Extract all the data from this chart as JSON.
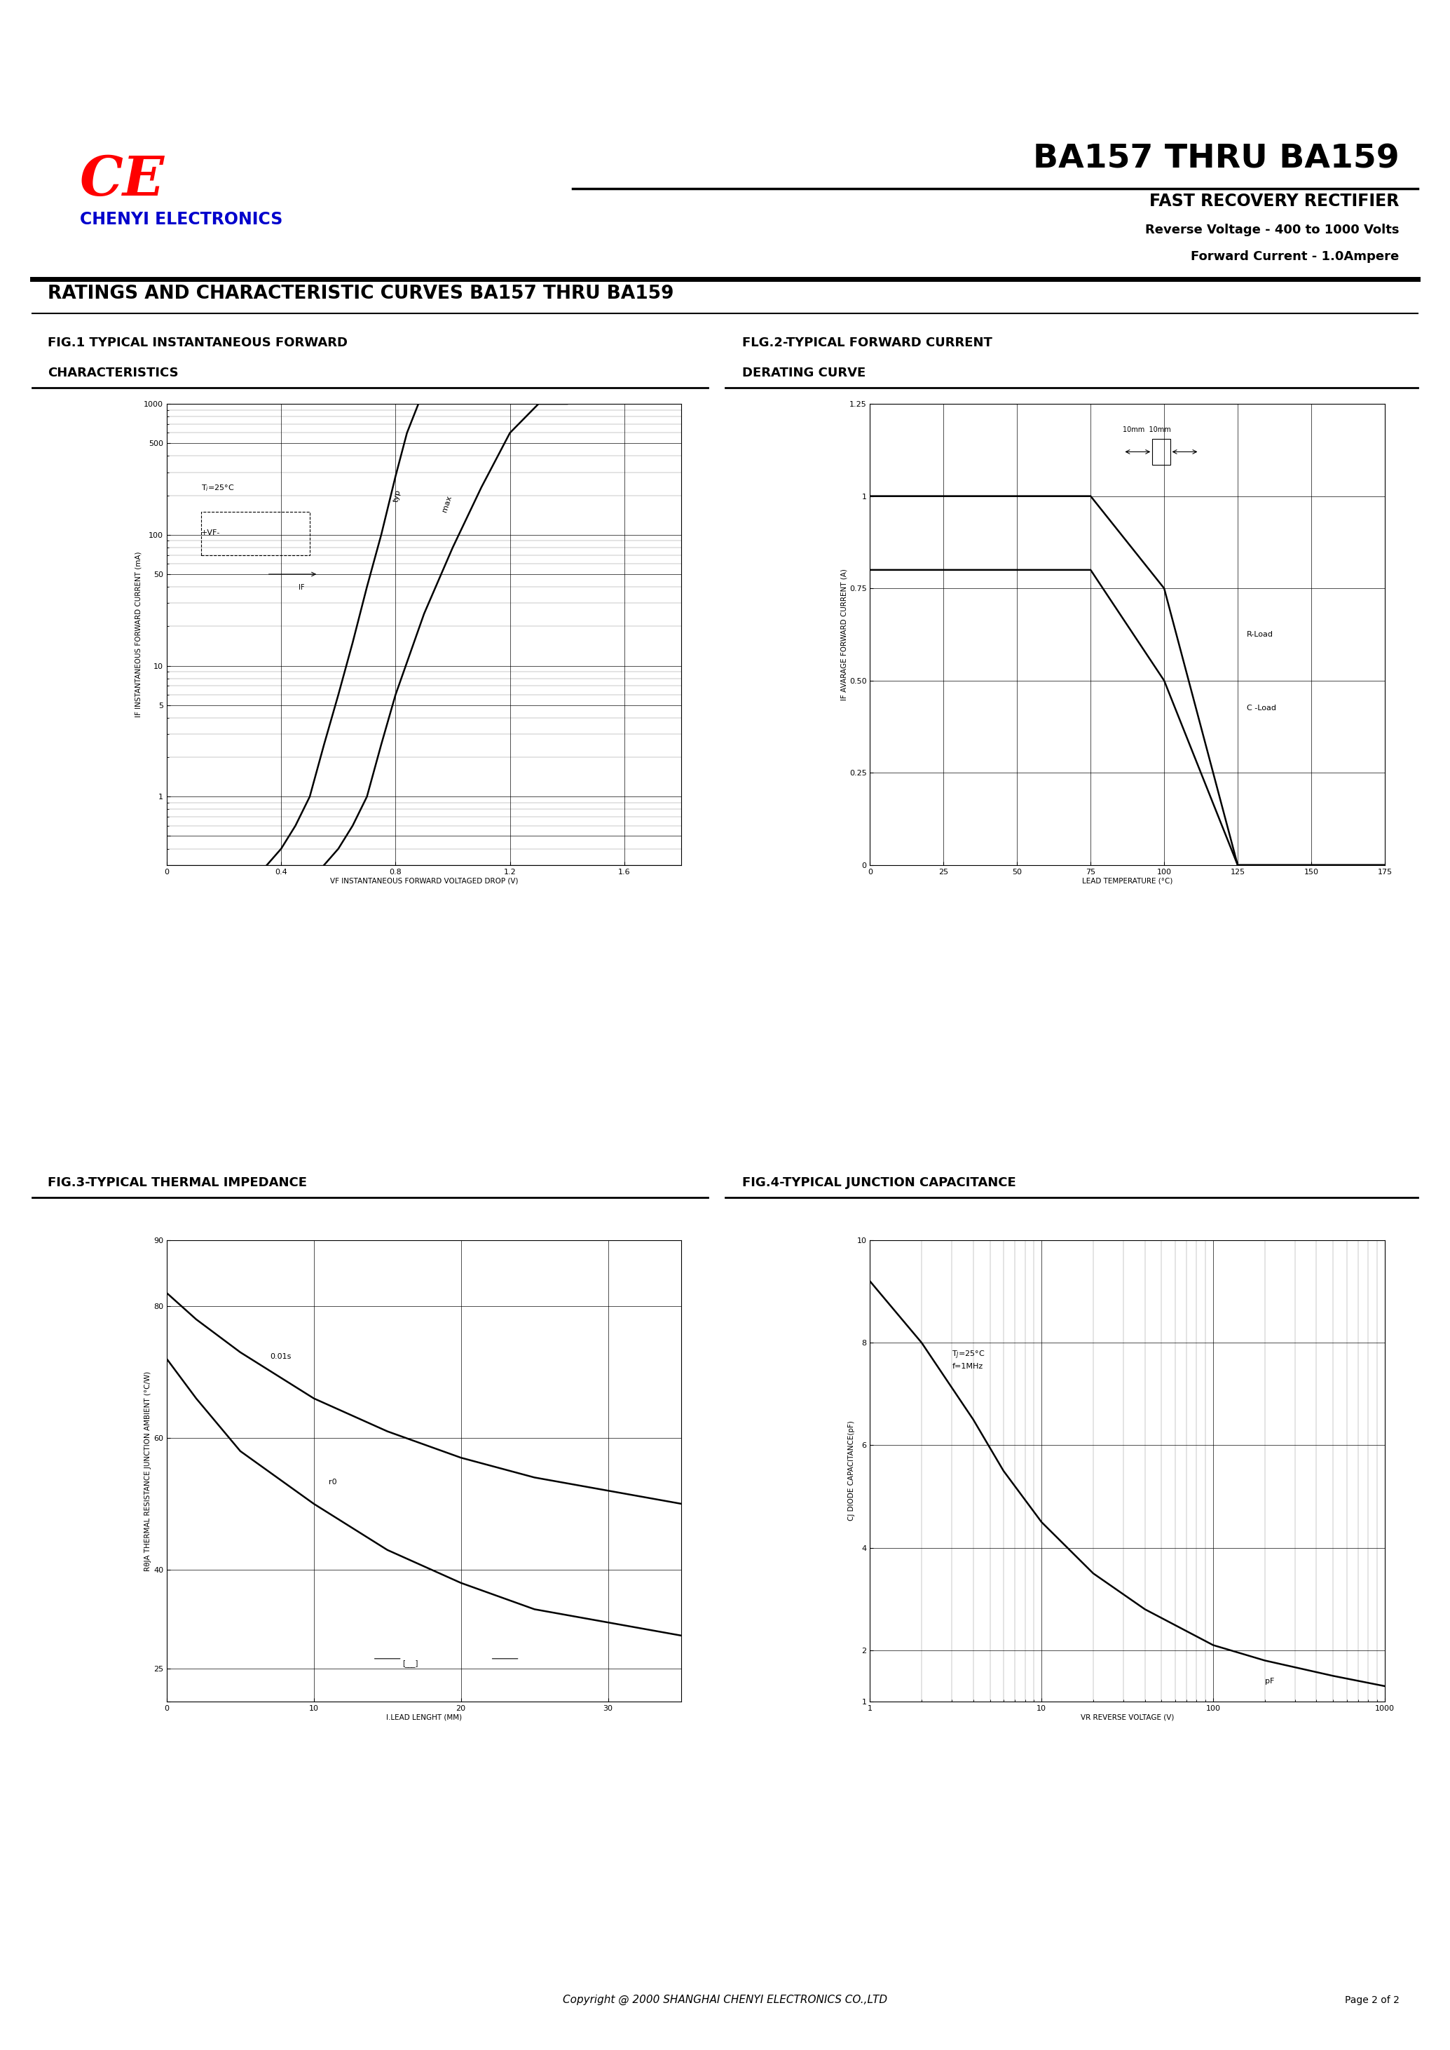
{
  "title_main": "BA157 THRU BA159",
  "subtitle1": "FAST RECOVERY RECTIFIER",
  "subtitle2": "Reverse Voltage - 400 to 1000 Volts",
  "subtitle3": "Forward Current - 1.0Ampere",
  "ce_text": "CE",
  "company": "CHENYI ELECTRONICS",
  "section_title": "RATINGS AND CHARACTERISTIC CURVES BA157 THRU BA159",
  "fig1_title_line1": "FIG.1 TYPICAL INSTANTANEOUS FORWARD",
  "fig1_title_line2": "CHARACTERISTICS",
  "fig2_title_line1": "FLG.2-TYPICAL FORWARD CURRENT",
  "fig2_title_line2": "DERATING CURVE",
  "fig3_title": "FIG.3-TYPICAL THERMAL IMPEDANCE",
  "fig4_title": "FIG.4-TYPICAL JUNCTION CAPACITANCE",
  "fig1_xlabel": "VF INSTANTANEOUS FORWARD VOLTAGED DROP (V)",
  "fig1_ylabel": "IF INSTANTANEOUS FORWARD CURRENT (mA)",
  "fig2_xlabel": "LEAD TEMPERATURE (°C)",
  "fig2_ylabel": "IF AVARAGE FORWARD CURRENT (A)",
  "fig3_xlabel": "l.LEAD LENGHT (MM)",
  "fig3_ylabel": "RθJA THERMAL RESISTANCE JUNCTION AMBIENT (°C/W)",
  "fig4_xlabel": "VR REVERSE VOLTAGE (V)",
  "fig4_ylabel": "CJ DIODE CAPACITANCE(pF)",
  "background_color": "#ffffff",
  "text_color": "#000000",
  "ce_color": "#ff0000",
  "company_color": "#0000cc",
  "copyright": "Copyright @ 2000 SHANGHAI CHENYI ELECTRONICS CO.,LTD",
  "page_text": "Page 2 of 2"
}
